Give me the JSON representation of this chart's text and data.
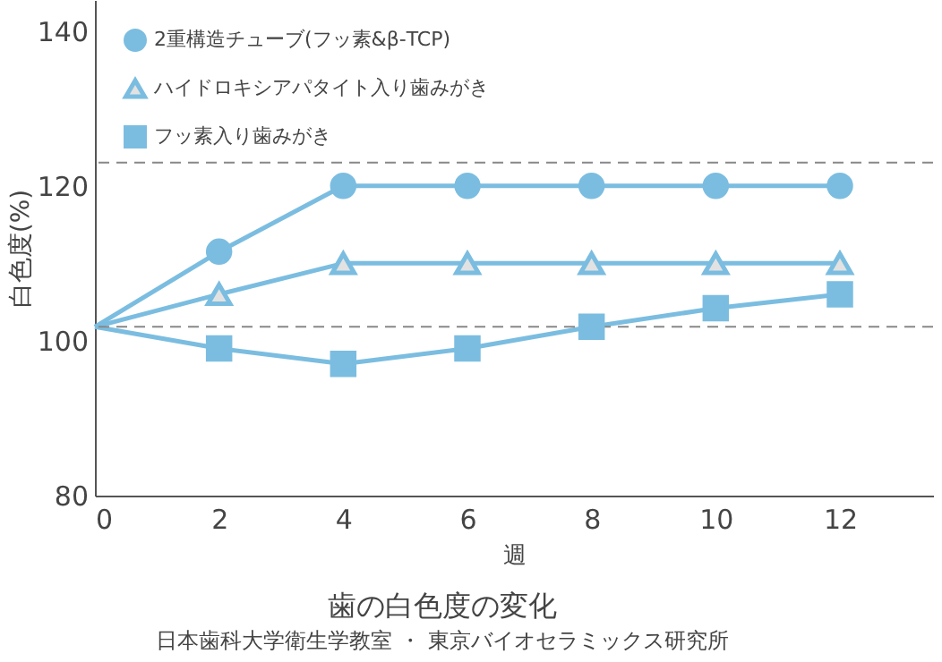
{
  "chart_data": {
    "type": "line",
    "title": "歯の白色度の変化",
    "annotations": [
      "日本歯科大学衛生学教室 ・ 東京バイオセラミックス研究所"
    ],
    "xlabel": "週",
    "ylabel": "白色度(%)",
    "x": [
      0,
      2,
      4,
      6,
      8,
      10,
      12
    ],
    "series": [
      {
        "name": "2重構造チューブ(フッ素&β-TCP)",
        "color": "#7bbde0",
        "marker": "circle",
        "values": [
          101.8,
          111.5,
          120,
          120,
          120,
          120,
          120
        ]
      },
      {
        "name": "ハイドロキシアパタイト入り歯みがき",
        "color": "#7bbde0",
        "marker": "triangle",
        "values": [
          101.8,
          106,
          110,
          110,
          110,
          110,
          110
        ]
      },
      {
        "name": "フッ素入り歯みがき",
        "color": "#7bbde0",
        "marker": "square",
        "values": [
          101.8,
          99,
          97,
          99,
          101.8,
          104.2,
          106
        ]
      }
    ],
    "xlim": [
      0,
      13.5
    ],
    "xticks": [
      0,
      2,
      4,
      6,
      8,
      10,
      12
    ],
    "ylim": [
      80,
      144
    ],
    "yticks": [
      80,
      100,
      120,
      140
    ],
    "ref_lines": [
      {
        "axis": "y",
        "value": 123,
        "color": "#888888",
        "line_style": "dashed"
      },
      {
        "axis": "y",
        "value": 101.8,
        "color": "#888888",
        "line_style": "dashed"
      }
    ],
    "grid": false,
    "legend": "top left"
  }
}
